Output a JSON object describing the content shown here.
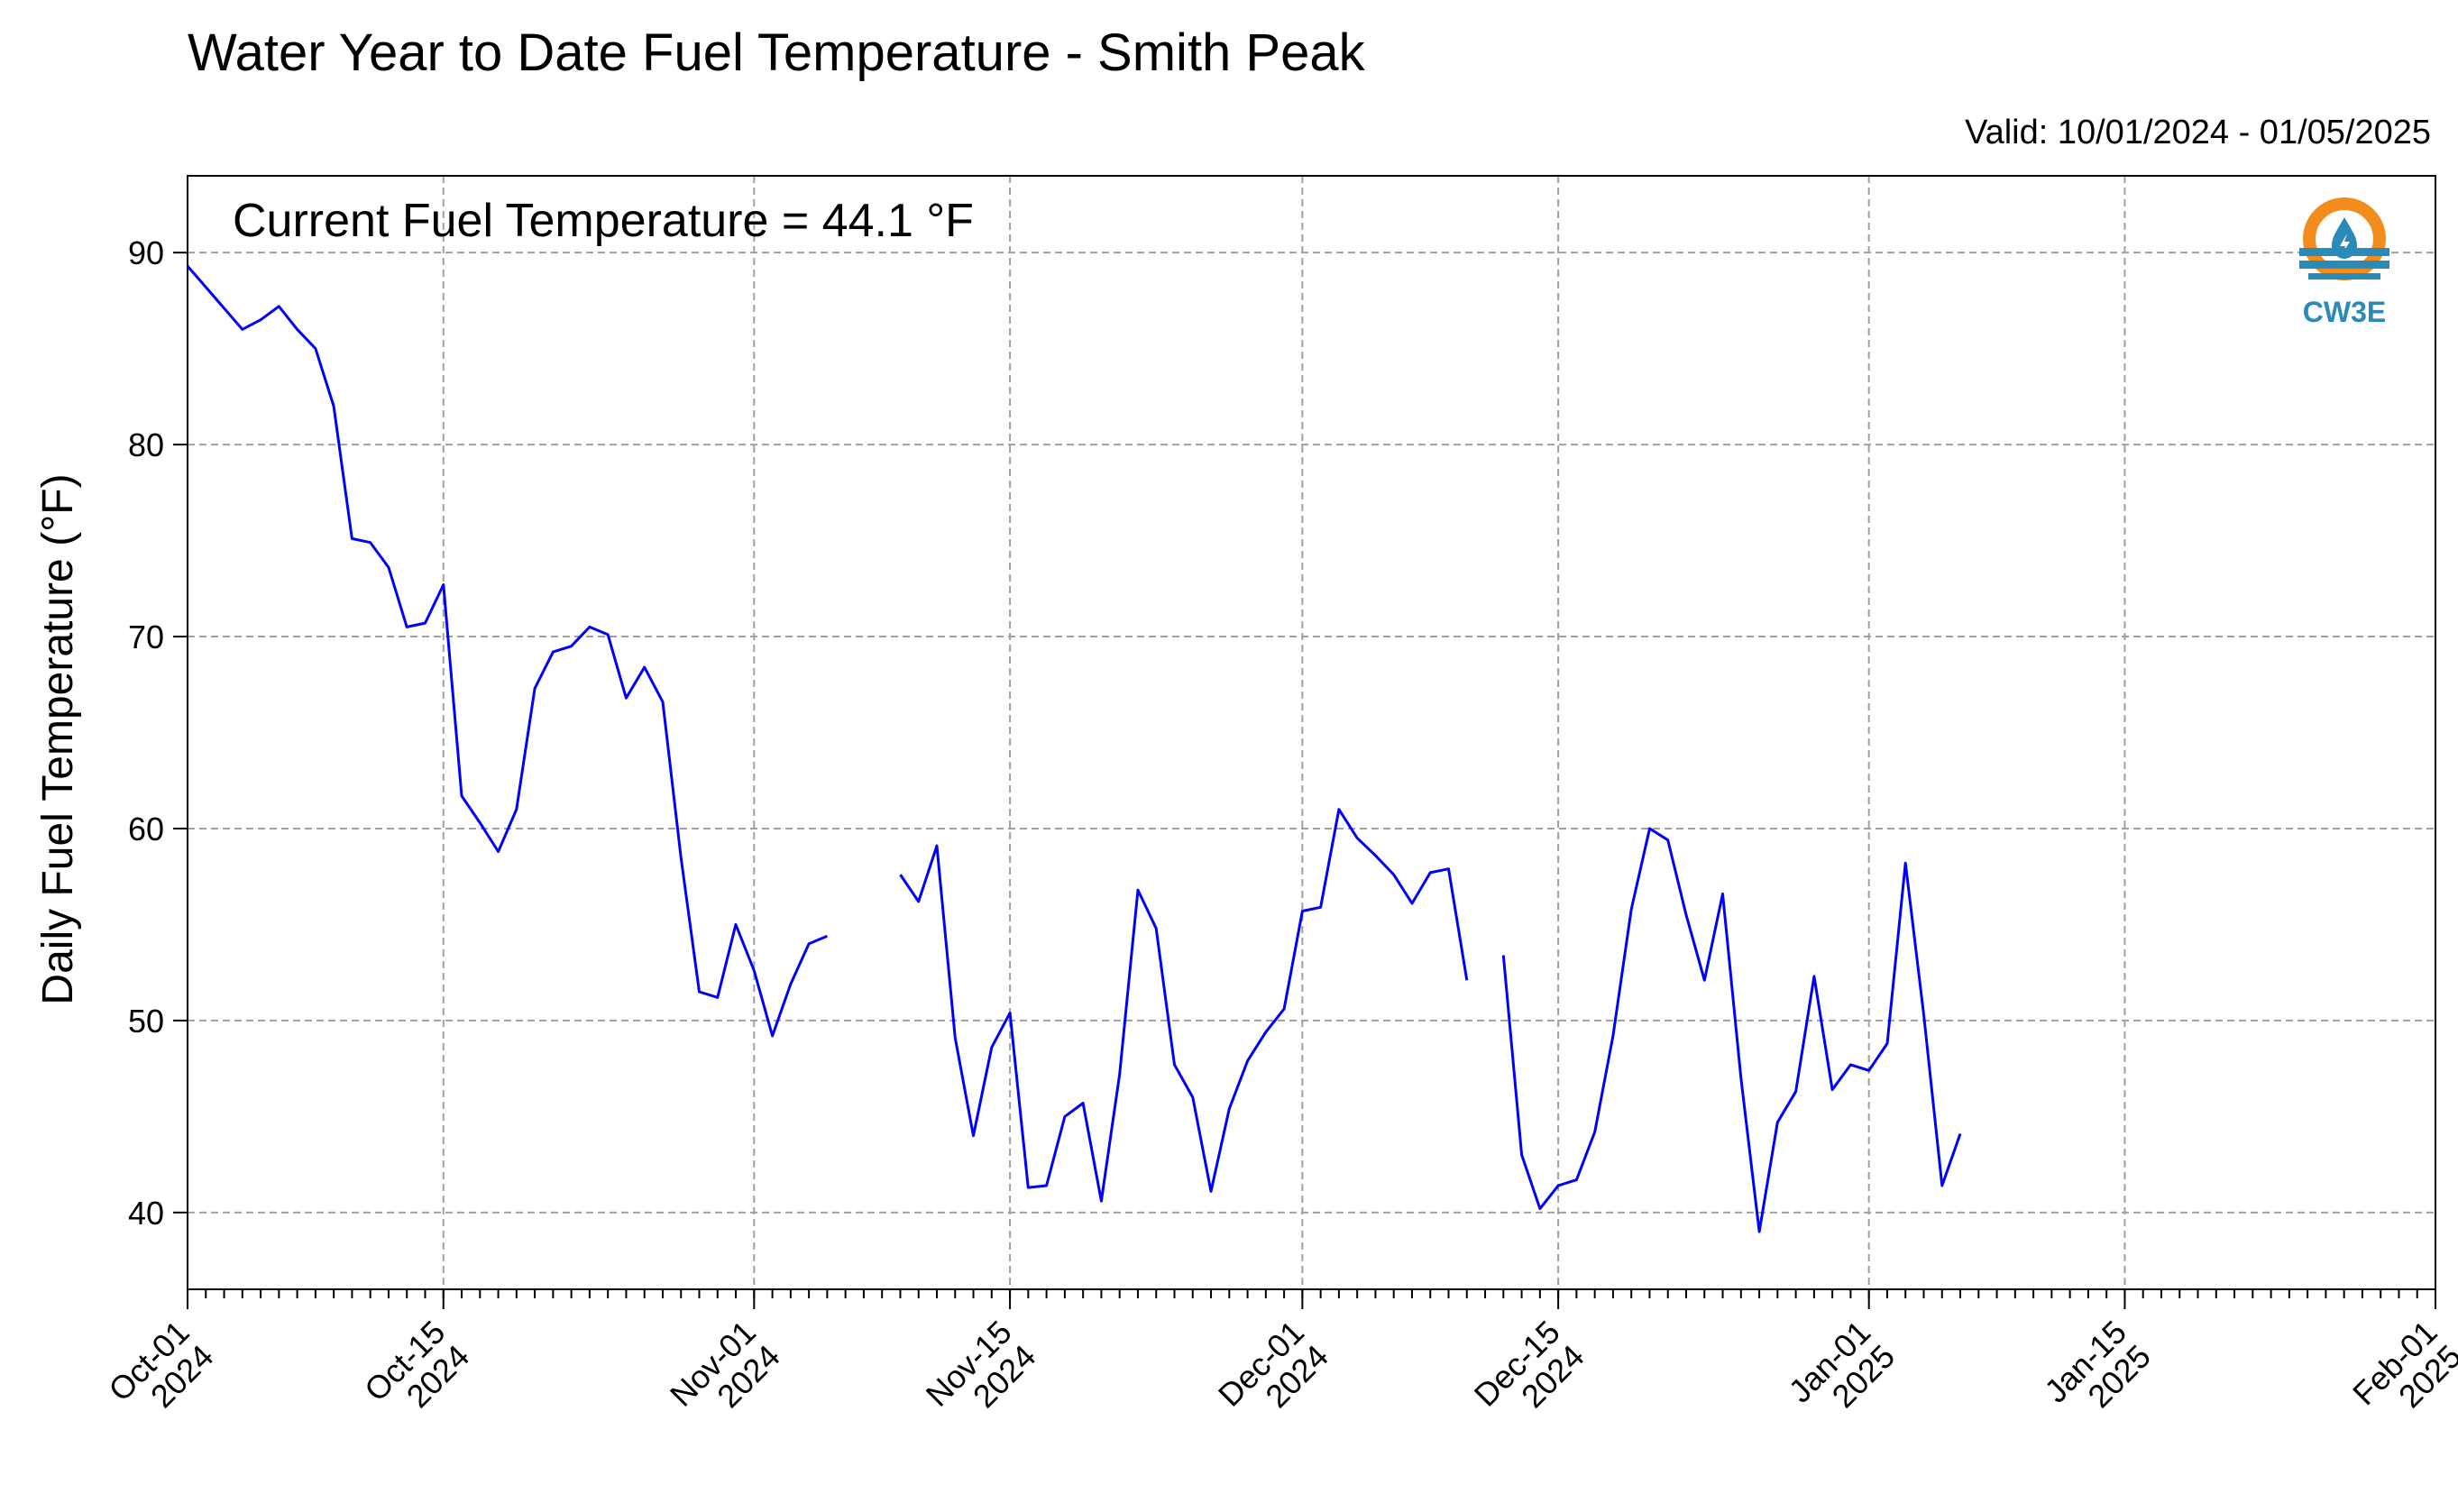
{
  "chart_data": {
    "type": "line",
    "title": "Water Year to Date Fuel Temperature - Smith Peak",
    "subtitle": "Valid: 10/01/2024 - 01/05/2025",
    "annotation": "Current Fuel Temperature = 44.1  °F",
    "ylabel": "Daily Fuel Temperature (°F)",
    "xlabel": "",
    "x_range": [
      "2024-10-01",
      "2025-02-01"
    ],
    "ylim": [
      36,
      94
    ],
    "yticks": [
      40,
      50,
      60,
      70,
      80,
      90
    ],
    "xticks": [
      {
        "date": "2024-10-01",
        "label": [
          "Oct-01",
          "2024"
        ]
      },
      {
        "date": "2024-10-15",
        "label": [
          "Oct-15",
          "2024"
        ]
      },
      {
        "date": "2024-11-01",
        "label": [
          "Nov-01",
          "2024"
        ]
      },
      {
        "date": "2024-11-15",
        "label": [
          "Nov-15",
          "2024"
        ]
      },
      {
        "date": "2024-12-01",
        "label": [
          "Dec-01",
          "2024"
        ]
      },
      {
        "date": "2024-12-15",
        "label": [
          "Dec-15",
          "2024"
        ]
      },
      {
        "date": "2025-01-01",
        "label": [
          "Jan-01",
          "2025"
        ]
      },
      {
        "date": "2025-01-15",
        "label": [
          "Jan-15",
          "2025"
        ]
      },
      {
        "date": "2025-02-01",
        "label": [
          "Feb-01",
          "2025"
        ]
      }
    ],
    "grid": true,
    "line_color": "#0000ff",
    "series": [
      {
        "name": "",
        "points": [
          [
            "2024-10-01",
            89.3
          ],
          [
            "2024-10-02",
            88.2
          ],
          [
            "2024-10-03",
            87.1
          ],
          [
            "2024-10-04",
            86.0
          ],
          [
            "2024-10-05",
            86.5
          ],
          [
            "2024-10-06",
            87.2
          ],
          [
            "2024-10-07",
            86.0
          ],
          [
            "2024-10-08",
            85.0
          ],
          [
            "2024-10-09",
            82.0
          ],
          [
            "2024-10-10",
            75.1
          ],
          [
            "2024-10-11",
            74.9
          ],
          [
            "2024-10-12",
            73.6
          ],
          [
            "2024-10-13",
            70.5
          ],
          [
            "2024-10-14",
            70.7
          ],
          [
            "2024-10-15",
            72.7
          ],
          [
            "2024-10-16",
            61.7
          ],
          [
            "2024-10-17",
            60.3
          ],
          [
            "2024-10-18",
            58.8
          ],
          [
            "2024-10-19",
            61.0
          ],
          [
            "2024-10-20",
            67.3
          ],
          [
            "2024-10-21",
            69.2
          ],
          [
            "2024-10-22",
            69.5
          ],
          [
            "2024-10-23",
            70.5
          ],
          [
            "2024-10-24",
            70.1
          ],
          [
            "2024-10-25",
            66.8
          ],
          [
            "2024-10-26",
            68.4
          ],
          [
            "2024-10-27",
            66.6
          ],
          [
            "2024-10-28",
            58.5
          ],
          [
            "2024-10-29",
            51.5
          ],
          [
            "2024-10-30",
            51.2
          ],
          [
            "2024-10-31",
            55.0
          ],
          [
            "2024-11-01",
            52.6
          ],
          [
            "2024-11-02",
            49.2
          ],
          [
            "2024-11-03",
            51.9
          ],
          [
            "2024-11-04",
            54.0
          ],
          [
            "2024-11-05",
            54.4
          ],
          [
            "2024-11-06",
            null
          ],
          [
            "2024-11-07",
            null
          ],
          [
            "2024-11-08",
            null
          ],
          [
            "2024-11-09",
            57.6
          ],
          [
            "2024-11-10",
            56.2
          ],
          [
            "2024-11-11",
            59.1
          ],
          [
            "2024-11-12",
            49.1
          ],
          [
            "2024-11-13",
            44.0
          ],
          [
            "2024-11-14",
            48.6
          ],
          [
            "2024-11-15",
            50.4
          ],
          [
            "2024-11-16",
            41.3
          ],
          [
            "2024-11-17",
            41.4
          ],
          [
            "2024-11-18",
            45.0
          ],
          [
            "2024-11-19",
            45.7
          ],
          [
            "2024-11-20",
            40.6
          ],
          [
            "2024-11-21",
            47.2
          ],
          [
            "2024-11-22",
            56.8
          ],
          [
            "2024-11-23",
            54.8
          ],
          [
            "2024-11-24",
            47.7
          ],
          [
            "2024-11-25",
            46.0
          ],
          [
            "2024-11-26",
            41.1
          ],
          [
            "2024-11-27",
            45.4
          ],
          [
            "2024-11-28",
            47.9
          ],
          [
            "2024-11-29",
            49.4
          ],
          [
            "2024-11-30",
            50.6
          ],
          [
            "2024-12-01",
            55.7
          ],
          [
            "2024-12-02",
            55.9
          ],
          [
            "2024-12-03",
            61.0
          ],
          [
            "2024-12-04",
            59.5
          ],
          [
            "2024-12-05",
            58.6
          ],
          [
            "2024-12-06",
            57.6
          ],
          [
            "2024-12-07",
            56.1
          ],
          [
            "2024-12-08",
            57.7
          ],
          [
            "2024-12-09",
            57.9
          ],
          [
            "2024-12-10",
            52.1
          ],
          [
            "2024-12-11",
            null
          ],
          [
            "2024-12-12",
            53.4
          ],
          [
            "2024-12-13",
            43.0
          ],
          [
            "2024-12-14",
            40.2
          ],
          [
            "2024-12-15",
            41.4
          ],
          [
            "2024-12-16",
            41.7
          ],
          [
            "2024-12-17",
            44.2
          ],
          [
            "2024-12-18",
            49.2
          ],
          [
            "2024-12-19",
            55.8
          ],
          [
            "2024-12-20",
            60.0
          ],
          [
            "2024-12-21",
            59.4
          ],
          [
            "2024-12-22",
            55.5
          ],
          [
            "2024-12-23",
            52.1
          ],
          [
            "2024-12-24",
            56.6
          ],
          [
            "2024-12-25",
            47.0
          ],
          [
            "2024-12-26",
            39.0
          ],
          [
            "2024-12-27",
            44.7
          ],
          [
            "2024-12-28",
            46.3
          ],
          [
            "2024-12-29",
            52.3
          ],
          [
            "2024-12-30",
            46.4
          ],
          [
            "2024-12-31",
            47.7
          ],
          [
            "2025-01-01",
            47.4
          ],
          [
            "2025-01-02",
            48.8
          ],
          [
            "2025-01-03",
            58.2
          ],
          [
            "2025-01-04",
            50.3
          ],
          [
            "2025-01-05",
            41.4
          ],
          [
            "2025-01-06",
            44.1
          ]
        ]
      }
    ]
  },
  "logo": {
    "text": "CW3E",
    "ring_color": "#f28c1c",
    "wave_color": "#2a8ab8"
  }
}
